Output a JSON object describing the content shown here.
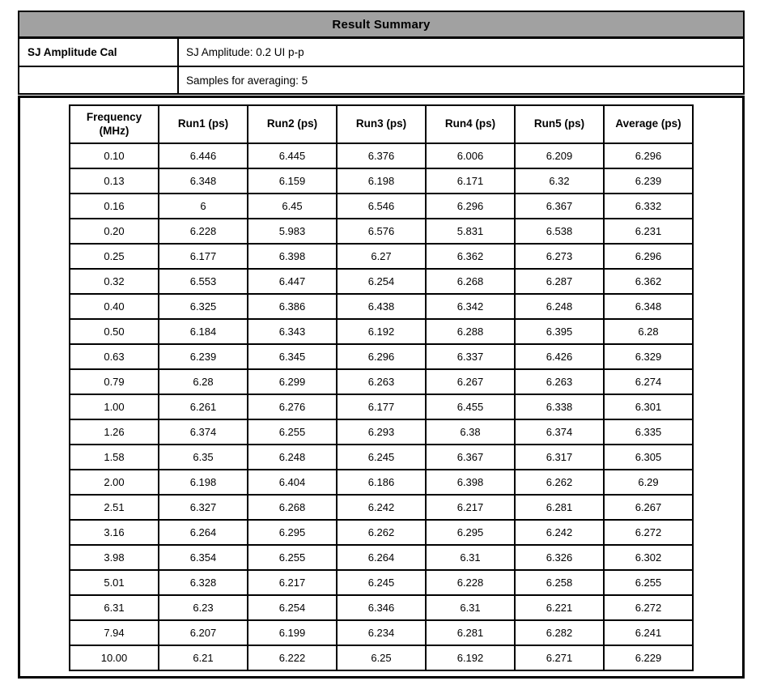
{
  "window": {
    "title": "Result Summary"
  },
  "info_panel": {
    "label": "SJ Amplitude Cal",
    "sj_amplitude": "SJ Amplitude: 0.2 UI p-p",
    "samples": "Samples for averaging: 5"
  },
  "results_table": {
    "headers": [
      "Frequency (MHz)",
      "Run1 (ps)",
      "Run2 (ps)",
      "Run3 (ps)",
      "Run4 (ps)",
      "Run5 (ps)",
      "Average (ps)"
    ],
    "rows": [
      [
        "0.10",
        "6.446",
        "6.445",
        "6.376",
        "6.006",
        "6.209",
        "6.296"
      ],
      [
        "0.13",
        "6.348",
        "6.159",
        "6.198",
        "6.171",
        "6.32",
        "6.239"
      ],
      [
        "0.16",
        "6",
        "6.45",
        "6.546",
        "6.296",
        "6.367",
        "6.332"
      ],
      [
        "0.20",
        "6.228",
        "5.983",
        "6.576",
        "5.831",
        "6.538",
        "6.231"
      ],
      [
        "0.25",
        "6.177",
        "6.398",
        "6.27",
        "6.362",
        "6.273",
        "6.296"
      ],
      [
        "0.32",
        "6.553",
        "6.447",
        "6.254",
        "6.268",
        "6.287",
        "6.362"
      ],
      [
        "0.40",
        "6.325",
        "6.386",
        "6.438",
        "6.342",
        "6.248",
        "6.348"
      ],
      [
        "0.50",
        "6.184",
        "6.343",
        "6.192",
        "6.288",
        "6.395",
        "6.28"
      ],
      [
        "0.63",
        "6.239",
        "6.345",
        "6.296",
        "6.337",
        "6.426",
        "6.329"
      ],
      [
        "0.79",
        "6.28",
        "6.299",
        "6.263",
        "6.267",
        "6.263",
        "6.274"
      ],
      [
        "1.00",
        "6.261",
        "6.276",
        "6.177",
        "6.455",
        "6.338",
        "6.301"
      ],
      [
        "1.26",
        "6.374",
        "6.255",
        "6.293",
        "6.38",
        "6.374",
        "6.335"
      ],
      [
        "1.58",
        "6.35",
        "6.248",
        "6.245",
        "6.367",
        "6.317",
        "6.305"
      ],
      [
        "2.00",
        "6.198",
        "6.404",
        "6.186",
        "6.398",
        "6.262",
        "6.29"
      ],
      [
        "2.51",
        "6.327",
        "6.268",
        "6.242",
        "6.217",
        "6.281",
        "6.267"
      ],
      [
        "3.16",
        "6.264",
        "6.295",
        "6.262",
        "6.295",
        "6.242",
        "6.272"
      ],
      [
        "3.98",
        "6.354",
        "6.255",
        "6.264",
        "6.31",
        "6.326",
        "6.302"
      ],
      [
        "5.01",
        "6.328",
        "6.217",
        "6.245",
        "6.228",
        "6.258",
        "6.255"
      ],
      [
        "6.31",
        "6.23",
        "6.254",
        "6.346",
        "6.31",
        "6.221",
        "6.272"
      ],
      [
        "7.94",
        "6.207",
        "6.199",
        "6.234",
        "6.281",
        "6.282",
        "6.241"
      ],
      [
        "10.00",
        "6.21",
        "6.222",
        "6.25",
        "6.192",
        "6.271",
        "6.229"
      ]
    ]
  },
  "colors": {
    "title_bar_bg": "#a1a1a1",
    "border": "#000000",
    "page_bg": "#ffffff"
  }
}
